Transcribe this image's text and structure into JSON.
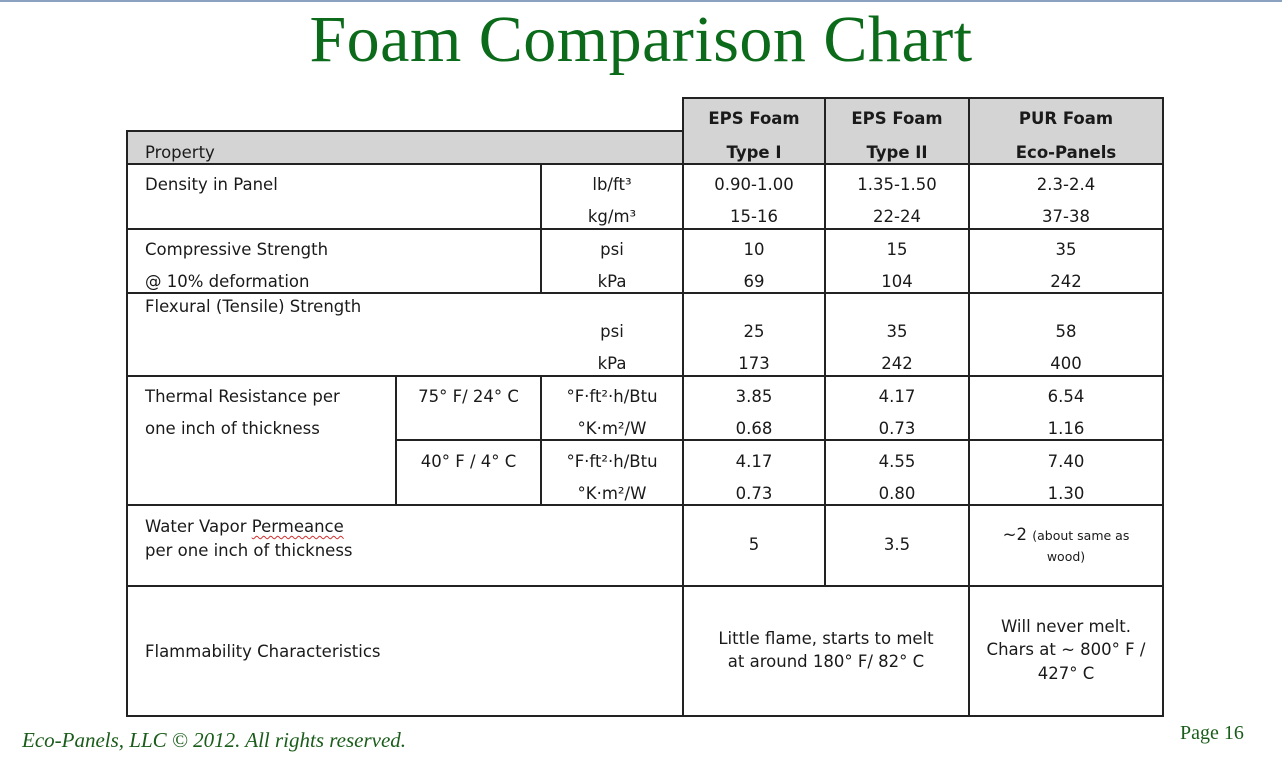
{
  "title": "Foam Comparison Chart",
  "footer": {
    "copyright": "Eco-Panels, LLC © 2012.  All rights reserved.",
    "page": "Page 16"
  },
  "header": {
    "property": "Property",
    "cols": [
      {
        "line1": "EPS Foam",
        "line2": "Type I"
      },
      {
        "line1": "EPS Foam",
        "line2": "Type II"
      },
      {
        "line1": "PUR Foam",
        "line2": "Eco-Panels"
      }
    ]
  },
  "density": {
    "label": "Density in Panel",
    "u1": "lb/ft³",
    "u2": "kg/m³",
    "r1": [
      "0.90-1.00",
      "1.35-1.50",
      "2.3-2.4"
    ],
    "r2": [
      "15-16",
      "22-24",
      "37-38"
    ]
  },
  "compressive": {
    "label1": "Compressive Strength",
    "label2": "@ 10% deformation",
    "u1": "psi",
    "u2": "kPa",
    "r1": [
      "10",
      "15",
      "35"
    ],
    "r2": [
      "69",
      "104",
      "242"
    ]
  },
  "flexural": {
    "label": "Flexural (Tensile) Strength",
    "u1": "psi",
    "u2": "kPa",
    "r1": [
      "25",
      "35",
      "58"
    ],
    "r2": [
      "173",
      "242",
      "400"
    ]
  },
  "thermal": {
    "label1": "Thermal Resistance per",
    "label2": "one inch of thickness",
    "t1": "75° F/ 24° C",
    "t2": "40° F / 4° C",
    "u1": "°F·ft²·h/Btu",
    "u2": "°K·m²/W",
    "a1": [
      "3.85",
      "4.17",
      "6.54"
    ],
    "a2": [
      "0.68",
      "0.73",
      "1.16"
    ],
    "b1": [
      "4.17",
      "4.55",
      "7.40"
    ],
    "b2": [
      "0.73",
      "0.80",
      "1.30"
    ]
  },
  "vapor": {
    "label1a": "Water Vapor ",
    "label1b": "Permeance",
    "label2": "per one inch of thickness",
    "v1": "5",
    "v2": "3.5",
    "v3a": "~2 ",
    "v3b": "(about same as",
    "v3c": "wood)"
  },
  "flammability": {
    "label": "Flammability Characteristics",
    "eps1": "Little flame, starts to melt",
    "eps2": "at around 180° F/ 82° C",
    "pur1": "Will never melt.",
    "pur2": "Chars at ~ 800° F /",
    "pur3": "427° C"
  }
}
